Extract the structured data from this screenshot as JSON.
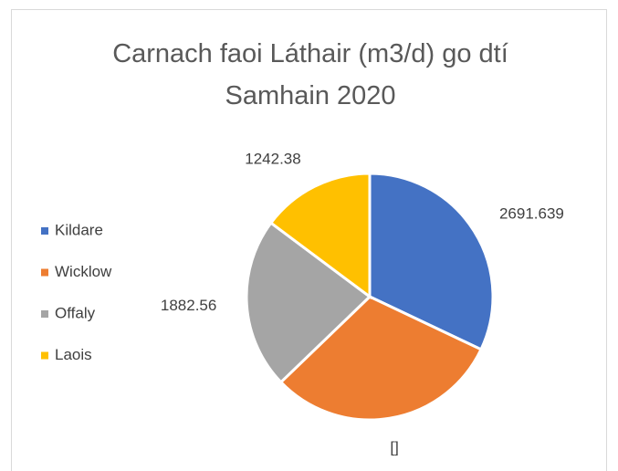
{
  "chart_data": {
    "type": "pie",
    "title": "Carnach faoi Láthair (m3/d) go dtí Samhain 2020",
    "categories": [
      "Kildare",
      "Wicklow",
      "Offaly",
      "Laois"
    ],
    "values": [
      2691.639,
      2583,
      1882.56,
      1242.38
    ],
    "value_labels": [
      "2691.639",
      "[]",
      "1882.56",
      "1242.38"
    ],
    "colors": [
      "#4472c4",
      "#ed7d31",
      "#a5a5a5",
      "#ffc000"
    ],
    "legend": "left"
  }
}
